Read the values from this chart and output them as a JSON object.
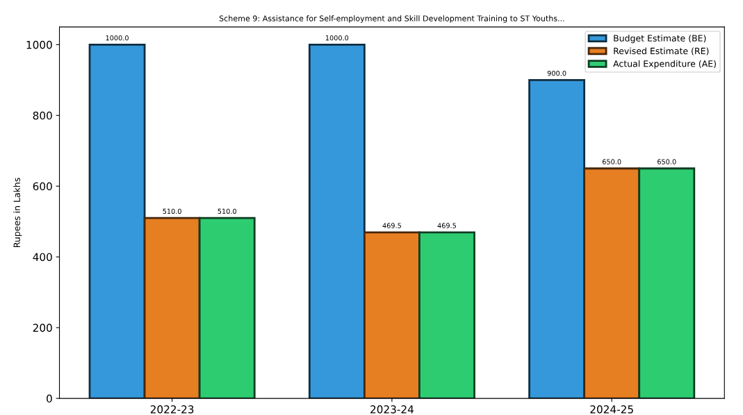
{
  "chart_data": {
    "type": "bar",
    "title": "Scheme 9: Assistance for Self-employment and Skill Development Training to ST Youths...",
    "ylabel": "Rupees in Lakhs",
    "categories": [
      "2022-23",
      "2023-24",
      "2024-25"
    ],
    "series": [
      {
        "name": "Budget Estimate (BE)",
        "color": "#3498db",
        "values": [
          1000.0,
          1000.0,
          900.0
        ],
        "value_labels": [
          "1000.0",
          "1000.0",
          "900.0"
        ]
      },
      {
        "name": "Revised Estimate (RE)",
        "color": "#e67e22",
        "values": [
          510.0,
          469.5,
          650.0
        ],
        "value_labels": [
          "510.0",
          "469.5",
          "650.0"
        ]
      },
      {
        "name": "Actual Expenditure (AE)",
        "color": "#2ecc71",
        "values": [
          510.0,
          469.5,
          650.0
        ],
        "value_labels": [
          "510.0",
          "469.5",
          "650.0"
        ]
      }
    ],
    "ylim": [
      0,
      1050
    ],
    "yticks": [
      0,
      200,
      400,
      600,
      800,
      1000
    ],
    "grid": false,
    "legend": "top right"
  }
}
